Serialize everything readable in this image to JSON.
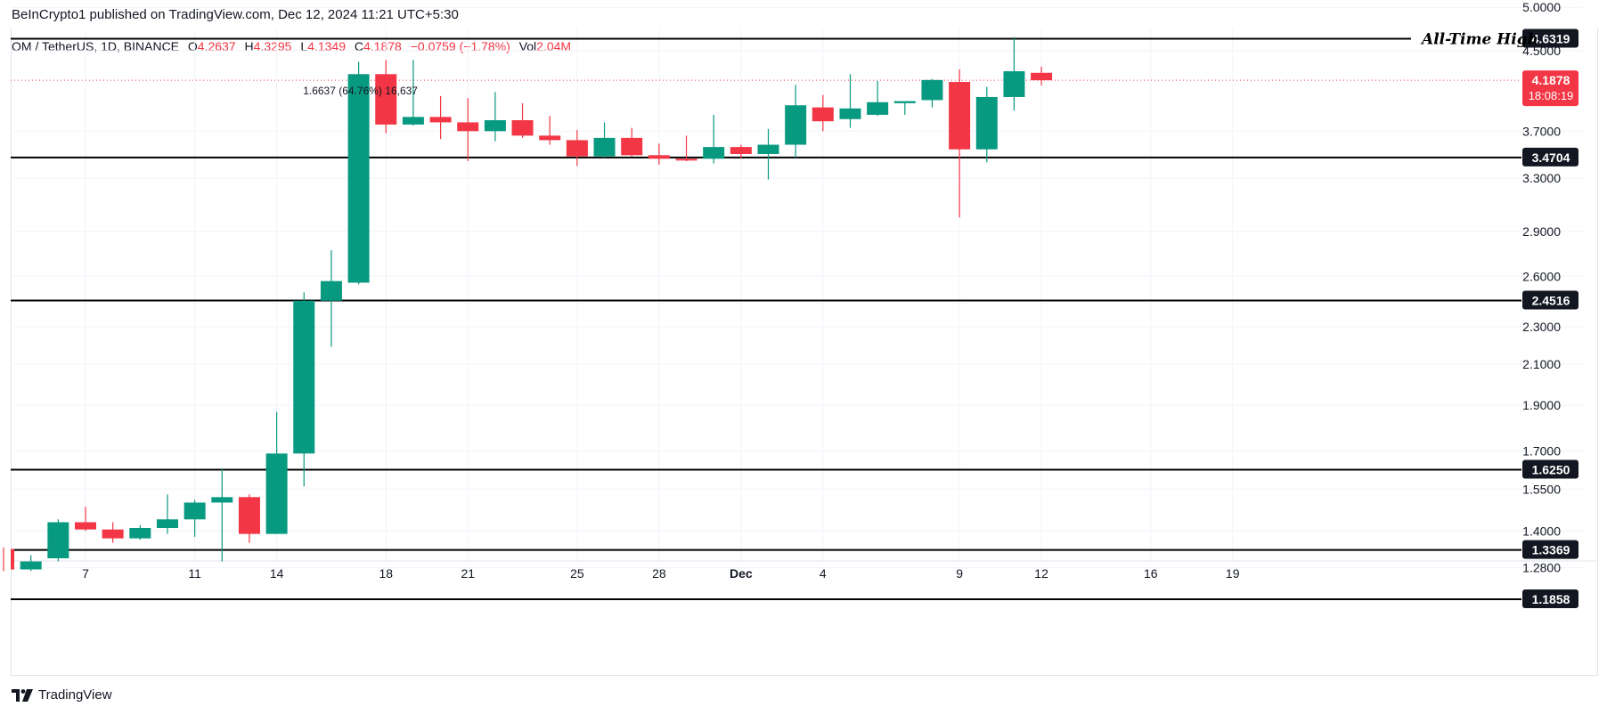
{
  "attribution": "BeInCrypto1 published on TradingView.com, Dec 12, 2024 11:21 UTC+5:30",
  "symbol_bar": {
    "symbol": "OM / TetherUS, 1D, BINANCE",
    "open_label": "O",
    "open_value": "4.2637",
    "high_label": "H",
    "high_value": "4.3295",
    "low_label": "L",
    "low_value": "4.1349",
    "close_label": "C",
    "close_value": "4.1878",
    "change_value": "−0.0759 (−1.78%)",
    "vol_label": "Vol",
    "vol_value": "2.04M"
  },
  "footer": {
    "brand": "TradingView"
  },
  "colors": {
    "up": "#089981",
    "down": "#f23645",
    "grid": "#f0f3fa",
    "axis_text": "#131722",
    "label_bg": "#131722",
    "current_bg": "#f23645"
  },
  "chart_data": {
    "type": "candlestick",
    "y_axis_ticks": [
      "5.0000",
      "4.5000",
      "3.7000",
      "3.3000",
      "2.9000",
      "2.6000",
      "2.3000",
      "2.1000",
      "1.9000",
      "1.7000",
      "1.5500",
      "1.4000",
      "1.2800"
    ],
    "x_axis_ticks": [
      {
        "label": "7",
        "day": 7
      },
      {
        "label": "11",
        "day": 11
      },
      {
        "label": "14",
        "day": 14
      },
      {
        "label": "18",
        "day": 18
      },
      {
        "label": "21",
        "day": 21
      },
      {
        "label": "25",
        "day": 25
      },
      {
        "label": "28",
        "day": 28
      },
      {
        "label": "Dec",
        "day": 31
      },
      {
        "label": "4",
        "day": 34
      },
      {
        "label": "9",
        "day": 39
      },
      {
        "label": "12",
        "day": 42
      },
      {
        "label": "16",
        "day": 46
      },
      {
        "label": "19",
        "day": 49
      }
    ],
    "candles": [
      {
        "day": 4,
        "o": 1.34,
        "h": 1.345,
        "c": 1.275,
        "l": 1.27
      },
      {
        "day": 5,
        "o": 1.275,
        "h": 1.32,
        "c": 1.3,
        "l": 1.27
      },
      {
        "day": 6,
        "o": 1.31,
        "h": 1.44,
        "c": 1.43,
        "l": 1.3
      },
      {
        "day": 7,
        "o": 1.43,
        "h": 1.485,
        "c": 1.405,
        "l": 1.4
      },
      {
        "day": 8,
        "o": 1.405,
        "h": 1.43,
        "c": 1.375,
        "l": 1.36
      },
      {
        "day": 9,
        "o": 1.375,
        "h": 1.42,
        "c": 1.41,
        "l": 1.37
      },
      {
        "day": 10,
        "o": 1.41,
        "h": 1.53,
        "c": 1.44,
        "l": 1.39
      },
      {
        "day": 11,
        "o": 1.44,
        "h": 1.51,
        "c": 1.5,
        "l": 1.38
      },
      {
        "day": 12,
        "o": 1.5,
        "h": 1.63,
        "c": 1.52,
        "l": 1.3
      },
      {
        "day": 13,
        "o": 1.52,
        "h": 1.53,
        "c": 1.39,
        "l": 1.36
      },
      {
        "day": 14,
        "o": 1.39,
        "h": 1.87,
        "c": 1.69,
        "l": 1.39
      },
      {
        "day": 15,
        "o": 1.69,
        "h": 2.5,
        "c": 2.45,
        "l": 1.56
      },
      {
        "day": 16,
        "o": 2.45,
        "h": 2.77,
        "c": 2.57,
        "l": 2.19
      },
      {
        "day": 17,
        "o": 2.56,
        "h": 4.38,
        "c": 4.25,
        "l": 2.55
      },
      {
        "day": 18,
        "o": 4.25,
        "h": 4.4,
        "c": 3.76,
        "l": 3.68
      },
      {
        "day": 19,
        "o": 3.76,
        "h": 4.4,
        "c": 3.83,
        "l": 3.75
      },
      {
        "day": 20,
        "o": 3.83,
        "h": 4.03,
        "c": 3.78,
        "l": 3.63
      },
      {
        "day": 21,
        "o": 3.78,
        "h": 4.01,
        "c": 3.7,
        "l": 3.44
      },
      {
        "day": 22,
        "o": 3.7,
        "h": 4.07,
        "c": 3.8,
        "l": 3.61
      },
      {
        "day": 23,
        "o": 3.8,
        "h": 3.96,
        "c": 3.66,
        "l": 3.64
      },
      {
        "day": 24,
        "o": 3.66,
        "h": 3.84,
        "c": 3.62,
        "l": 3.58
      },
      {
        "day": 25,
        "o": 3.62,
        "h": 3.71,
        "c": 3.48,
        "l": 3.4
      },
      {
        "day": 26,
        "o": 3.48,
        "h": 3.78,
        "c": 3.64,
        "l": 3.47
      },
      {
        "day": 27,
        "o": 3.64,
        "h": 3.73,
        "c": 3.49,
        "l": 3.48
      },
      {
        "day": 28,
        "o": 3.49,
        "h": 3.59,
        "c": 3.46,
        "l": 3.41
      },
      {
        "day": 29,
        "o": 3.46,
        "h": 3.66,
        "c": 3.45,
        "l": 3.44
      },
      {
        "day": 30,
        "o": 3.46,
        "h": 3.85,
        "c": 3.56,
        "l": 3.42
      },
      {
        "day": 31,
        "o": 3.56,
        "h": 3.58,
        "c": 3.5,
        "l": 3.46
      },
      {
        "day": 32,
        "o": 3.5,
        "h": 3.72,
        "c": 3.58,
        "l": 3.29
      },
      {
        "day": 33,
        "o": 3.58,
        "h": 4.14,
        "c": 3.94,
        "l": 3.47
      },
      {
        "day": 34,
        "o": 3.92,
        "h": 4.04,
        "c": 3.79,
        "l": 3.7
      },
      {
        "day": 35,
        "o": 3.81,
        "h": 4.25,
        "c": 3.91,
        "l": 3.73
      },
      {
        "day": 36,
        "o": 3.85,
        "h": 4.18,
        "c": 3.97,
        "l": 3.84
      },
      {
        "day": 37,
        "o": 3.96,
        "h": 3.97,
        "c": 3.98,
        "l": 3.85
      },
      {
        "day": 38,
        "o": 3.99,
        "h": 4.2,
        "c": 4.19,
        "l": 3.92
      },
      {
        "day": 39,
        "o": 4.17,
        "h": 4.3,
        "c": 3.54,
        "l": 3.0
      },
      {
        "day": 40,
        "o": 3.54,
        "h": 4.12,
        "c": 4.02,
        "l": 3.43
      },
      {
        "day": 41,
        "o": 4.02,
        "h": 4.65,
        "c": 4.28,
        "l": 3.89
      },
      {
        "day": 42,
        "o": 4.2637,
        "h": 4.3295,
        "c": 4.1878,
        "l": 4.1349
      }
    ],
    "horizontal_levels": [
      {
        "value": 4.6319,
        "label": "4.6319"
      },
      {
        "value": 3.4704,
        "label": "3.4704"
      },
      {
        "value": 2.4516,
        "label": "2.4516"
      },
      {
        "value": 1.625,
        "label": "1.6250"
      },
      {
        "value": 1.3369,
        "label": "1.3369"
      },
      {
        "value": 1.1858,
        "label": "1.1858"
      }
    ],
    "ath_label": "All-Time High",
    "current_price": {
      "value": 4.1878,
      "label": "4.1878",
      "countdown": "18:08:19"
    },
    "annotation": {
      "text": "1.6637 (64.76%) 16,637",
      "day": 17
    }
  }
}
